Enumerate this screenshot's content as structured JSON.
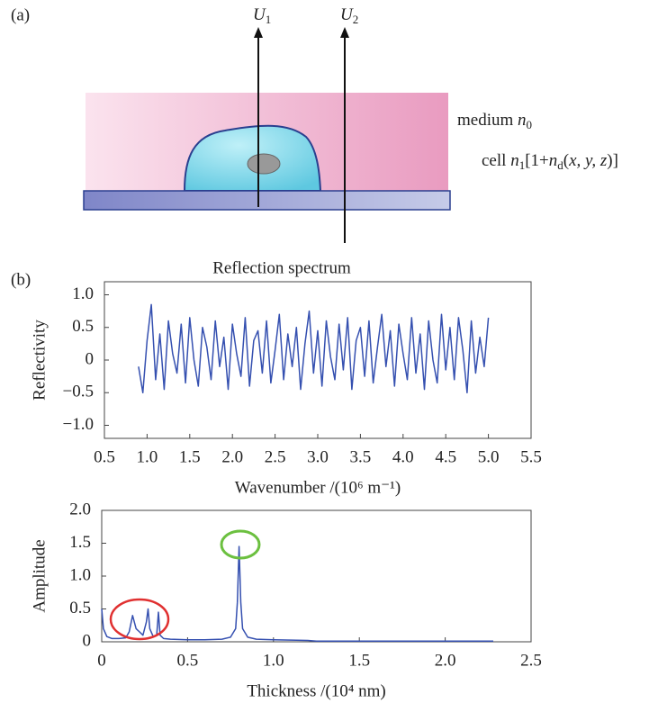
{
  "figure": {
    "panel_a": "(a)",
    "panel_b": "(b)",
    "u1": [
      {
        "text": "U",
        "style": "italic"
      },
      {
        "text": "1",
        "style": "sub"
      }
    ],
    "u2": [
      {
        "text": "U",
        "style": "italic"
      },
      {
        "text": "2",
        "style": "sub"
      }
    ],
    "medium": [
      {
        "text": "medium ",
        "style": "normal"
      },
      {
        "text": "n",
        "style": "italic"
      },
      {
        "text": "0",
        "style": "sub"
      }
    ],
    "cell": [
      {
        "text": "cell ",
        "style": "normal"
      },
      {
        "text": "n",
        "style": "italic"
      },
      {
        "text": "1",
        "style": "sub"
      },
      {
        "text": "[1+",
        "style": "normal"
      },
      {
        "text": "n",
        "style": "italic"
      },
      {
        "text": "d",
        "style": "sub"
      },
      {
        "text": "(",
        "style": "normal"
      },
      {
        "text": "x, y, z",
        "style": "italic"
      },
      {
        "text": ")]",
        "style": "normal"
      }
    ]
  },
  "chart_data": [
    {
      "type": "line",
      "title": "Reflection spectrum",
      "x_label": "Wavenumber /(10⁶ m⁻¹)",
      "y_label": "Reflectivity",
      "x": [
        0.9,
        0.95,
        1.0,
        1.05,
        1.1,
        1.15,
        1.2,
        1.25,
        1.3,
        1.35,
        1.4,
        1.45,
        1.5,
        1.55,
        1.6,
        1.65,
        1.7,
        1.75,
        1.8,
        1.85,
        1.9,
        1.95,
        2.0,
        2.05,
        2.1,
        2.15,
        2.2,
        2.25,
        2.3,
        2.35,
        2.4,
        2.45,
        2.5,
        2.55,
        2.6,
        2.65,
        2.7,
        2.75,
        2.8,
        2.85,
        2.9,
        2.95,
        3.0,
        3.05,
        3.1,
        3.15,
        3.2,
        3.25,
        3.3,
        3.35,
        3.4,
        3.45,
        3.5,
        3.55,
        3.6,
        3.65,
        3.7,
        3.75,
        3.8,
        3.85,
        3.9,
        3.95,
        4.0,
        4.05,
        4.1,
        4.15,
        4.2,
        4.25,
        4.3,
        4.35,
        4.4,
        4.45,
        4.5,
        4.55,
        4.6,
        4.65,
        4.7,
        4.75,
        4.8,
        4.85,
        4.9,
        4.95,
        5.0
      ],
      "series": [
        {
          "color": "#3550b0",
          "values": [
            -0.1,
            -0.5,
            0.3,
            0.85,
            -0.3,
            0.4,
            -0.45,
            0.6,
            0.1,
            -0.2,
            0.55,
            -0.35,
            0.65,
            0.0,
            -0.4,
            0.5,
            0.2,
            -0.3,
            0.6,
            -0.1,
            0.35,
            -0.45,
            0.55,
            0.1,
            -0.25,
            0.65,
            -0.4,
            0.3,
            0.45,
            -0.2,
            0.6,
            -0.35,
            0.15,
            0.7,
            -0.3,
            0.4,
            -0.1,
            0.5,
            -0.45,
            0.25,
            0.75,
            -0.2,
            0.45,
            -0.4,
            0.6,
            0.05,
            -0.3,
            0.55,
            -0.15,
            0.65,
            -0.45,
            0.3,
            0.5,
            -0.25,
            0.6,
            -0.35,
            0.2,
            0.7,
            -0.1,
            0.45,
            -0.4,
            0.55,
            0.1,
            -0.3,
            0.65,
            -0.2,
            0.4,
            -0.45,
            0.6,
            0.0,
            -0.35,
            0.7,
            -0.15,
            0.5,
            -0.3,
            0.65,
            0.15,
            -0.5,
            0.6,
            -0.2,
            0.35,
            -0.1,
            0.65
          ]
        }
      ],
      "xlim": [
        0.5,
        5.5
      ],
      "ylim": [
        -1.2,
        1.2
      ],
      "xticks": [
        0.5,
        {
          "value": 1,
          "label": "1.0"
        },
        1.5,
        {
          "value": 2,
          "label": "2.0"
        },
        2.5,
        {
          "value": 3,
          "label": "3.0"
        },
        3.5,
        {
          "value": 4,
          "label": "4.0"
        },
        4.5,
        {
          "value": 5,
          "label": "5.0"
        },
        5.5
      ],
      "yticks": [
        {
          "value": -1,
          "label": "−1.0"
        },
        {
          "value": -0.5,
          "label": "−0.5"
        },
        0,
        0.5,
        {
          "value": 1,
          "label": "1.0"
        }
      ]
    },
    {
      "type": "line",
      "x_label": "Thickness /(10⁴ nm)",
      "y_label": "Amplitude",
      "x": [
        0,
        0.01,
        0.03,
        0.06,
        0.1,
        0.14,
        0.16,
        0.18,
        0.2,
        0.22,
        0.24,
        0.26,
        0.27,
        0.28,
        0.3,
        0.32,
        0.33,
        0.34,
        0.36,
        0.4,
        0.5,
        0.6,
        0.7,
        0.75,
        0.78,
        0.79,
        0.8,
        0.81,
        0.82,
        0.85,
        0.9,
        1.0,
        1.2,
        1.25,
        1.4,
        1.6,
        1.8,
        2.0,
        2.2,
        2.28
      ],
      "series": [
        {
          "color": "#3550b0",
          "values": [
            0.5,
            0.2,
            0.08,
            0.05,
            0.05,
            0.06,
            0.15,
            0.4,
            0.2,
            0.15,
            0.1,
            0.3,
            0.5,
            0.2,
            0.08,
            0.1,
            0.45,
            0.1,
            0.05,
            0.04,
            0.03,
            0.03,
            0.04,
            0.07,
            0.2,
            0.6,
            1.45,
            0.6,
            0.2,
            0.07,
            0.04,
            0.03,
            0.02,
            0.01,
            0.01,
            0.01,
            0.01,
            0.01,
            0.01,
            0.01
          ]
        }
      ],
      "xlim": [
        0,
        2.5
      ],
      "ylim": [
        0,
        2
      ],
      "xticks": [
        0,
        0.5,
        {
          "value": 1,
          "label": "1.0"
        },
        1.5,
        {
          "value": 2,
          "label": "2.0"
        },
        2.5
      ],
      "yticks": [
        0,
        0.5,
        {
          "value": 1,
          "label": "1.0"
        },
        1.5,
        {
          "value": 2,
          "label": "2.0"
        }
      ]
    }
  ]
}
